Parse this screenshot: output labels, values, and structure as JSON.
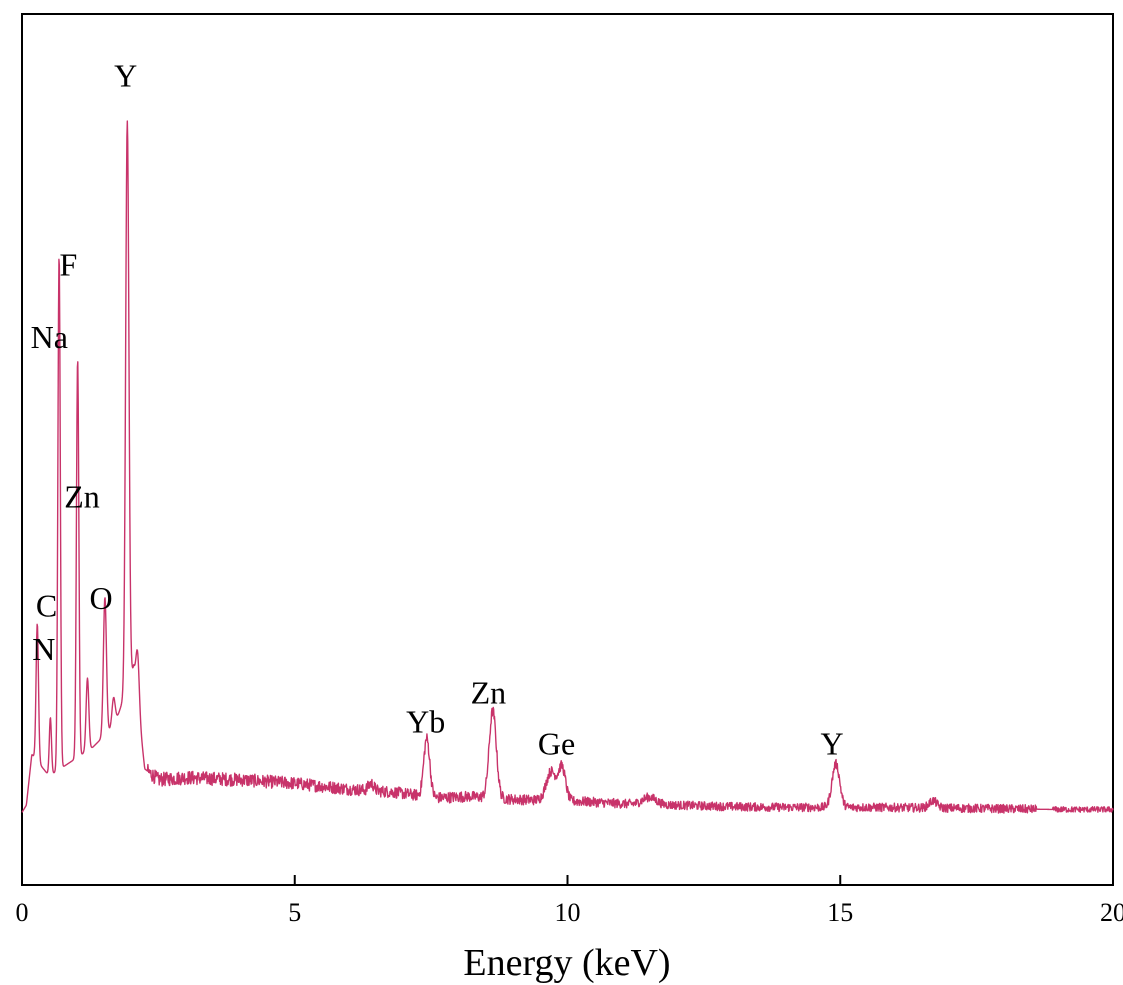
{
  "chart_data": {
    "type": "line",
    "title": "",
    "xlabel": "Energy (keV)",
    "ylabel": "",
    "xlim": [
      0,
      20
    ],
    "ylim": [
      -0.1,
      1.1
    ],
    "xticks": [
      "0",
      "5",
      "10",
      "15",
      "20"
    ],
    "grid": false,
    "line_color": "#c8336a",
    "baseline": [
      [
        0,
        0.0
      ],
      [
        0.08,
        0.01
      ],
      [
        0.18,
        0.08
      ],
      [
        0.5,
        0.05
      ],
      [
        0.9,
        0.07
      ],
      [
        1.3,
        0.09
      ],
      [
        1.7,
        0.12
      ],
      [
        2.05,
        0.2
      ],
      [
        2.25,
        0.06
      ],
      [
        2.5,
        0.045
      ],
      [
        3,
        0.048
      ],
      [
        4,
        0.045
      ],
      [
        5,
        0.04
      ],
      [
        6,
        0.032
      ],
      [
        6.8,
        0.028
      ],
      [
        7.6,
        0.02
      ],
      [
        8.2,
        0.022
      ],
      [
        9,
        0.018
      ],
      [
        10.3,
        0.015
      ],
      [
        11,
        0.012
      ],
      [
        12,
        0.01
      ],
      [
        13,
        0.008
      ],
      [
        14,
        0.007
      ],
      [
        15.5,
        0.007
      ],
      [
        17,
        0.006
      ],
      [
        18,
        0.005
      ],
      [
        19,
        0.004
      ],
      [
        20,
        0.004
      ]
    ],
    "peaks": [
      {
        "x": 0.28,
        "height": 0.19,
        "width": 0.022
      },
      {
        "x": 0.52,
        "height": 0.08,
        "width": 0.02
      },
      {
        "x": 0.68,
        "height": 0.71,
        "width": 0.022
      },
      {
        "x": 1.02,
        "height": 0.55,
        "width": 0.022
      },
      {
        "x": 1.2,
        "height": 0.1,
        "width": 0.025
      },
      {
        "x": 1.52,
        "height": 0.19,
        "width": 0.028
      },
      {
        "x": 1.68,
        "height": 0.04,
        "width": 0.03
      },
      {
        "x": 1.93,
        "height": 0.78,
        "width": 0.03
      },
      {
        "x": 2.12,
        "height": 0.07,
        "width": 0.03
      },
      {
        "x": 6.4,
        "height": 0.01,
        "width": 0.05
      },
      {
        "x": 7.42,
        "height": 0.08,
        "width": 0.055
      },
      {
        "x": 8.63,
        "height": 0.12,
        "width": 0.065
      },
      {
        "x": 9.7,
        "height": 0.04,
        "width": 0.09
      },
      {
        "x": 9.9,
        "height": 0.045,
        "width": 0.065
      },
      {
        "x": 11.5,
        "height": 0.01,
        "width": 0.12
      },
      {
        "x": 14.92,
        "height": 0.06,
        "width": 0.07
      },
      {
        "x": 16.7,
        "height": 0.01,
        "width": 0.07
      }
    ],
    "annotations": [
      {
        "text": "Y",
        "x": 1.9,
        "y": 1.0
      },
      {
        "text": "F",
        "x": 0.85,
        "y": 0.74
      },
      {
        "text": "Na",
        "x": 0.5,
        "y": 0.64
      },
      {
        "text": "Zn",
        "x": 1.1,
        "y": 0.42
      },
      {
        "text": "O",
        "x": 1.45,
        "y": 0.28
      },
      {
        "text": "C",
        "x": 0.45,
        "y": 0.27
      },
      {
        "text": "N",
        "x": 0.4,
        "y": 0.21
      },
      {
        "text": "Yb",
        "x": 7.4,
        "y": 0.11
      },
      {
        "text": "Zn",
        "x": 8.55,
        "y": 0.15
      },
      {
        "text": "Ge",
        "x": 9.8,
        "y": 0.08
      },
      {
        "text": "Y",
        "x": 14.85,
        "y": 0.08
      }
    ]
  }
}
